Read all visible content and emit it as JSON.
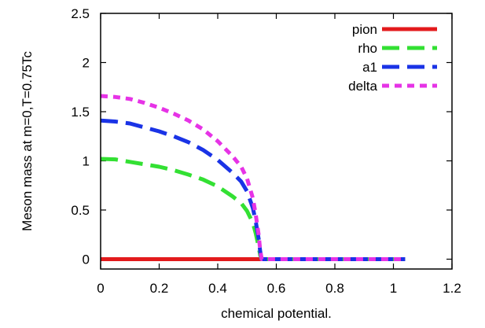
{
  "chart_data": {
    "type": "line",
    "title": "",
    "xlabel": "chemical potential.",
    "ylabel": "Meson mass at m=0,T=0.75Tc",
    "xlim": [
      0,
      1.2
    ],
    "ylim": [
      -0.1,
      2.5
    ],
    "xticks": [
      "0",
      "0.2",
      "0.4",
      "0.6",
      "0.8",
      "1",
      "1.2"
    ],
    "yticks": [
      "0",
      "0.5",
      "1",
      "1.5",
      "2",
      "2.5"
    ],
    "legend_position": "top-right",
    "series": [
      {
        "name": "pion",
        "color": "#e31a1c",
        "dash": "solid",
        "x": [
          0,
          0.2,
          0.4,
          0.55,
          0.7,
          0.9,
          1.04
        ],
        "y": [
          0,
          0,
          0,
          0,
          0,
          0,
          0
        ]
      },
      {
        "name": "rho",
        "color": "#33e033",
        "dash": "long-dash",
        "x": [
          0,
          0.05,
          0.1,
          0.15,
          0.2,
          0.25,
          0.3,
          0.35,
          0.4,
          0.45,
          0.48,
          0.5,
          0.52,
          0.53,
          0.54,
          0.545,
          0.55,
          0.6,
          0.7,
          0.8,
          0.9,
          1.04
        ],
        "y": [
          1.02,
          1.015,
          0.99,
          0.965,
          0.94,
          0.905,
          0.86,
          0.81,
          0.74,
          0.64,
          0.57,
          0.49,
          0.37,
          0.26,
          0.12,
          0.04,
          0,
          0,
          0,
          0,
          0,
          0
        ]
      },
      {
        "name": "a1",
        "color": "#1a33e6",
        "dash": "long-dash",
        "x": [
          0,
          0.05,
          0.1,
          0.15,
          0.2,
          0.25,
          0.3,
          0.35,
          0.4,
          0.45,
          0.48,
          0.5,
          0.52,
          0.53,
          0.54,
          0.545,
          0.55,
          0.6,
          0.7,
          0.8,
          0.9,
          1.04
        ],
        "y": [
          1.41,
          1.4,
          1.38,
          1.34,
          1.3,
          1.25,
          1.19,
          1.11,
          1.01,
          0.88,
          0.79,
          0.69,
          0.52,
          0.38,
          0.2,
          0.08,
          0,
          0,
          0,
          0,
          0,
          0
        ]
      },
      {
        "name": "delta",
        "color": "#e633e6",
        "dash": "short-dash",
        "x": [
          0,
          0.05,
          0.1,
          0.15,
          0.2,
          0.25,
          0.3,
          0.35,
          0.4,
          0.45,
          0.48,
          0.5,
          0.52,
          0.53,
          0.54,
          0.545,
          0.55,
          0.6,
          0.7,
          0.8,
          0.9,
          1.04
        ],
        "y": [
          1.66,
          1.65,
          1.63,
          1.59,
          1.54,
          1.48,
          1.41,
          1.32,
          1.2,
          1.05,
          0.94,
          0.82,
          0.62,
          0.45,
          0.24,
          0.09,
          0,
          0,
          0,
          0,
          0,
          0
        ]
      }
    ]
  }
}
